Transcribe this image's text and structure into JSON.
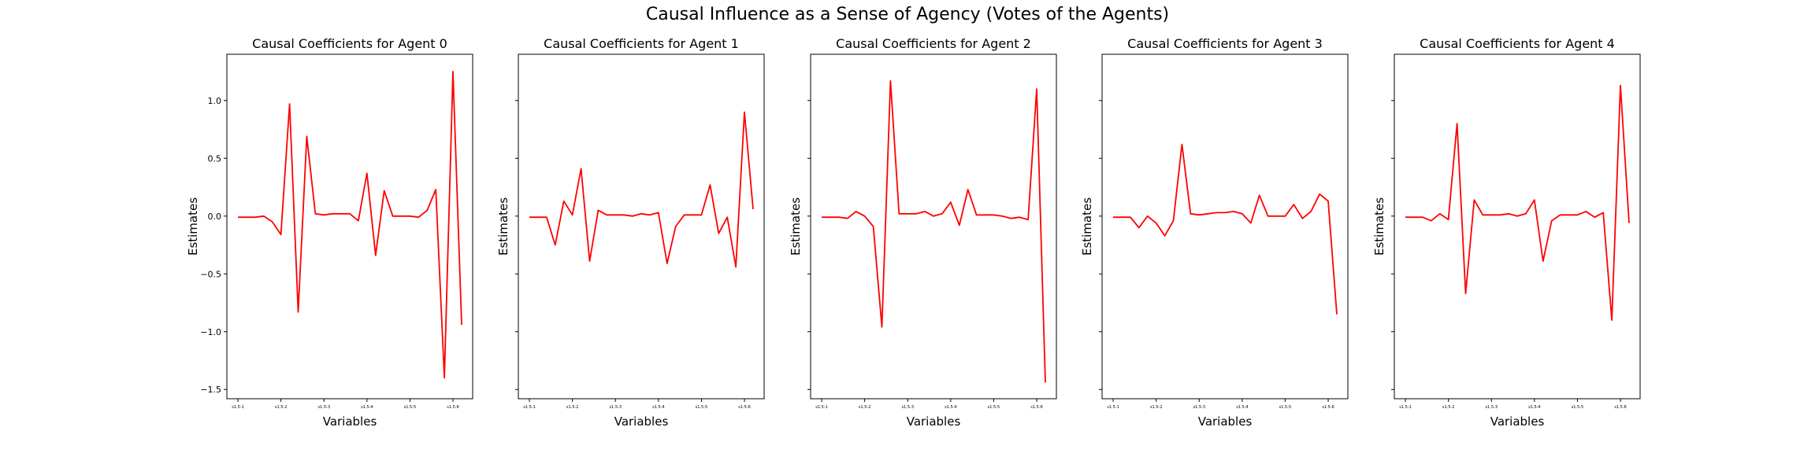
{
  "figure": {
    "suptitle": "Causal Influence as a Sense of Agency (Votes of the Agents)"
  },
  "chart_data": [
    {
      "type": "line",
      "title": "Causal Coefficients for Agent 0",
      "xlabel": "Variables",
      "ylabel": "Estimates",
      "ylim": [
        -1.58,
        1.4
      ],
      "yticks": [
        -1.5,
        -1.0,
        -0.5,
        0.0,
        0.5,
        1.0
      ],
      "ytick_labels": [
        "−1.5",
        "−1.0",
        "−0.5",
        "0.0",
        "0.5",
        "1.0"
      ],
      "show_ytick_labels": true,
      "xtick_labels": [
        "s1.5-1",
        "s1.5-2",
        "s1.5-3",
        "s1.5-4",
        "s1.5-5",
        "s1.5-6"
      ],
      "xtick_index": [
        0,
        5,
        10,
        15,
        20,
        25
      ],
      "series": [
        {
          "color": "#ff0000",
          "values": [
            -0.01,
            -0.01,
            -0.01,
            0.0,
            -0.05,
            -0.16,
            0.97,
            -0.83,
            0.69,
            0.02,
            0.01,
            0.02,
            0.02,
            0.02,
            -0.04,
            0.37,
            -0.34,
            0.22,
            0.0,
            0.0,
            0.0,
            -0.01,
            0.05,
            0.23,
            -1.4,
            1.25,
            -0.94
          ]
        }
      ]
    },
    {
      "type": "line",
      "title": "Causal Coefficients for Agent 1",
      "xlabel": "Variables",
      "ylabel": "Estimates",
      "ylim": [
        -1.58,
        1.4
      ],
      "yticks": [
        -1.5,
        -1.0,
        -0.5,
        0.0,
        0.5,
        1.0
      ],
      "show_ytick_labels": false,
      "xtick_labels": [
        "s1.5-1",
        "s1.5-2",
        "s1.5-3",
        "s1.5-4",
        "s1.5-5",
        "s1.5-6"
      ],
      "xtick_index": [
        0,
        5,
        10,
        15,
        20,
        25
      ],
      "series": [
        {
          "color": "#ff0000",
          "values": [
            -0.01,
            -0.01,
            -0.01,
            -0.25,
            0.13,
            0.01,
            0.41,
            -0.39,
            0.05,
            0.01,
            0.01,
            0.01,
            0.0,
            0.02,
            0.01,
            0.03,
            -0.41,
            -0.09,
            0.01,
            0.01,
            0.01,
            0.27,
            -0.15,
            -0.01,
            -0.44,
            0.9,
            0.06
          ]
        }
      ]
    },
    {
      "type": "line",
      "title": "Causal Coefficients for Agent 2",
      "xlabel": "Variables",
      "ylabel": "Estimates",
      "ylim": [
        -1.58,
        1.4
      ],
      "yticks": [
        -1.5,
        -1.0,
        -0.5,
        0.0,
        0.5,
        1.0
      ],
      "show_ytick_labels": false,
      "xtick_labels": [
        "s1.5-1",
        "s1.5-2",
        "s1.5-3",
        "s1.5-4",
        "s1.5-5",
        "s1.5-6"
      ],
      "xtick_index": [
        0,
        5,
        10,
        15,
        20,
        25
      ],
      "series": [
        {
          "color": "#ff0000",
          "values": [
            -0.01,
            -0.01,
            -0.01,
            -0.02,
            0.04,
            0.0,
            -0.09,
            -0.96,
            1.17,
            0.02,
            0.02,
            0.02,
            0.04,
            0.0,
            0.02,
            0.12,
            -0.08,
            0.23,
            0.01,
            0.01,
            0.01,
            0.0,
            -0.02,
            -0.01,
            -0.03,
            1.1,
            -1.44
          ]
        }
      ]
    },
    {
      "type": "line",
      "title": "Causal Coefficients for Agent 3",
      "xlabel": "Variables",
      "ylabel": "Estimates",
      "ylim": [
        -1.58,
        1.4
      ],
      "yticks": [
        -1.5,
        -1.0,
        -0.5,
        0.0,
        0.5,
        1.0
      ],
      "show_ytick_labels": false,
      "xtick_labels": [
        "s1.5-1",
        "s1.5-2",
        "s1.5-3",
        "s1.5-4",
        "s1.5-5",
        "s1.5-6"
      ],
      "xtick_index": [
        0,
        5,
        10,
        15,
        20,
        25
      ],
      "series": [
        {
          "color": "#ff0000",
          "values": [
            -0.01,
            -0.01,
            -0.01,
            -0.1,
            0.0,
            -0.06,
            -0.17,
            -0.04,
            0.62,
            0.02,
            0.01,
            0.02,
            0.03,
            0.03,
            0.04,
            0.02,
            -0.06,
            0.18,
            0.0,
            0.0,
            0.0,
            0.1,
            -0.02,
            0.04,
            0.19,
            0.13,
            -0.85
          ]
        }
      ]
    },
    {
      "type": "line",
      "title": "Causal Coefficients for Agent 4",
      "xlabel": "Variables",
      "ylabel": "Estimates",
      "ylim": [
        -1.58,
        1.4
      ],
      "yticks": [
        -1.5,
        -1.0,
        -0.5,
        0.0,
        0.5,
        1.0
      ],
      "show_ytick_labels": false,
      "xtick_labels": [
        "s1.5-1",
        "s1.5-2",
        "s1.5-3",
        "s1.5-4",
        "s1.5-5",
        "s1.5-6"
      ],
      "xtick_index": [
        0,
        5,
        10,
        15,
        20,
        25
      ],
      "series": [
        {
          "color": "#ff0000",
          "values": [
            -0.01,
            -0.01,
            -0.01,
            -0.04,
            0.02,
            -0.03,
            0.8,
            -0.67,
            0.14,
            0.01,
            0.01,
            0.01,
            0.02,
            0.0,
            0.02,
            0.14,
            -0.39,
            -0.04,
            0.01,
            0.01,
            0.01,
            0.04,
            -0.01,
            0.03,
            -0.9,
            1.13,
            -0.06
          ]
        }
      ]
    }
  ]
}
